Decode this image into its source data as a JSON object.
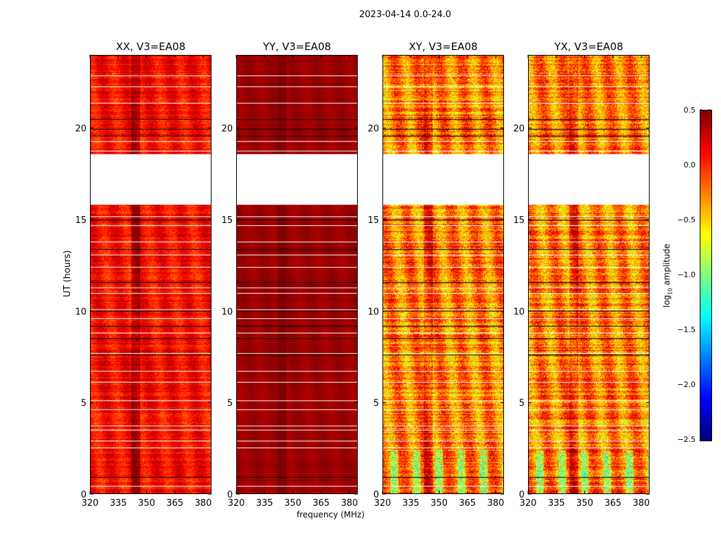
{
  "figure": {
    "suptitle": "2023-04-14 0.0-24.0",
    "xlabel": "frequency (MHz)",
    "ylabel": "UT (hours)",
    "colorbar_label_main": "log",
    "colorbar_label_sub": "10",
    "colorbar_label_rest": " amplitude"
  },
  "chart_data": {
    "type": "heatmap",
    "title": "2023-04-14 0.0-24.0",
    "xlabel": "frequency (MHz)",
    "ylabel": "UT (hours)",
    "xlim": [
      320,
      384.4
    ],
    "ylim": [
      0,
      24
    ],
    "xticks": [
      "320",
      "335",
      "350",
      "365",
      "380"
    ],
    "xtick_values": [
      320,
      335,
      350,
      365,
      380
    ],
    "yticks": [
      "0",
      "5",
      "10",
      "15",
      "20"
    ],
    "ytick_values": [
      0,
      5,
      10,
      15,
      20
    ],
    "colormap": "jet",
    "clim": [
      -2.5,
      0.5
    ],
    "colorbar_ticks": [
      "0.5",
      "0.0",
      "−0.5",
      "−1.0",
      "−1.5",
      "−2.0",
      "−2.5"
    ],
    "colorbar_tick_values": [
      0.5,
      0.0,
      -0.5,
      -1.0,
      -1.5,
      -2.0,
      -2.5
    ],
    "flagged_ut_ranges": [
      [
        15.85,
        18.6
      ]
    ],
    "white_lines_ut": [
      0.4,
      2.5,
      2.9,
      3.5,
      3.7,
      4.6,
      5.1,
      6.1,
      6.7,
      7.7,
      8.8,
      9.6,
      10.1,
      11.0,
      11.3,
      12.4,
      13.1,
      13.8,
      14.7,
      15.2,
      18.8,
      19.3,
      21.4,
      22.3,
      22.9
    ],
    "black_lines_ut": [
      0.9,
      7.6,
      8.5,
      9.2,
      10.0,
      11.6,
      13.4,
      15.0,
      19.6,
      20.0,
      20.5
    ],
    "series": [
      {
        "name": "XX, V3=EA08",
        "mean_log_amp": 0.1,
        "spread": 0.35
      },
      {
        "name": "YY, V3=EA08",
        "mean_log_amp": 0.42,
        "spread": 0.1
      },
      {
        "name": "XY, V3=EA08",
        "mean_log_amp": -0.25,
        "spread": 0.65
      },
      {
        "name": "YX, V3=EA08",
        "mean_log_amp": -0.25,
        "spread": 0.65
      }
    ]
  }
}
